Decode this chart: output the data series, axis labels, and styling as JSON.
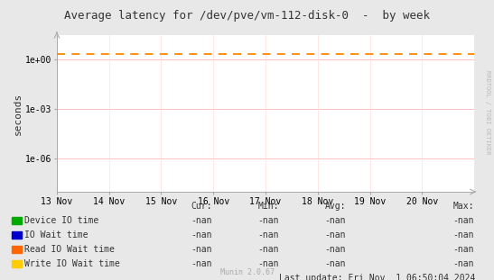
{
  "title": "Average latency for /dev/pve/vm-112-disk-0  -  by week",
  "ylabel": "seconds",
  "bg_color": "#e8e8e8",
  "plot_bg_color": "#ffffff",
  "grid_color_major": "#ffaaaa",
  "grid_color_minor": "#ffdddd",
  "x_labels": [
    "13 Nov",
    "14 Nov",
    "15 Nov",
    "16 Nov",
    "17 Nov",
    "18 Nov",
    "19 Nov",
    "20 Nov"
  ],
  "y_ticks_major": [
    1e-06,
    0.001,
    1.0
  ],
  "y_tick_labels": [
    "1e-06",
    "1e-03",
    "1e+00"
  ],
  "ylim_low": 1e-08,
  "ylim_high": 30.0,
  "dashed_line_y": 2.0,
  "dashed_line_color": "#ff8800",
  "watermark": "RRDTOOL / TOBI OETIKER",
  "munin_text": "Munin 2.0.67",
  "last_update": "Last update: Fri Nov  1 06:50:04 2024",
  "legend": [
    {
      "label": "Device IO time",
      "color": "#00aa00"
    },
    {
      "label": "IO Wait time",
      "color": "#0000cc"
    },
    {
      "label": "Read IO Wait time",
      "color": "#ff6600"
    },
    {
      "label": "Write IO Wait time",
      "color": "#ffcc00"
    }
  ],
  "legend_cols": [
    "Cur:",
    "Min:",
    "Avg:",
    "Max:"
  ],
  "legend_value": "-nan",
  "title_fontsize": 9,
  "axis_fontsize": 7,
  "legend_fontsize": 7
}
